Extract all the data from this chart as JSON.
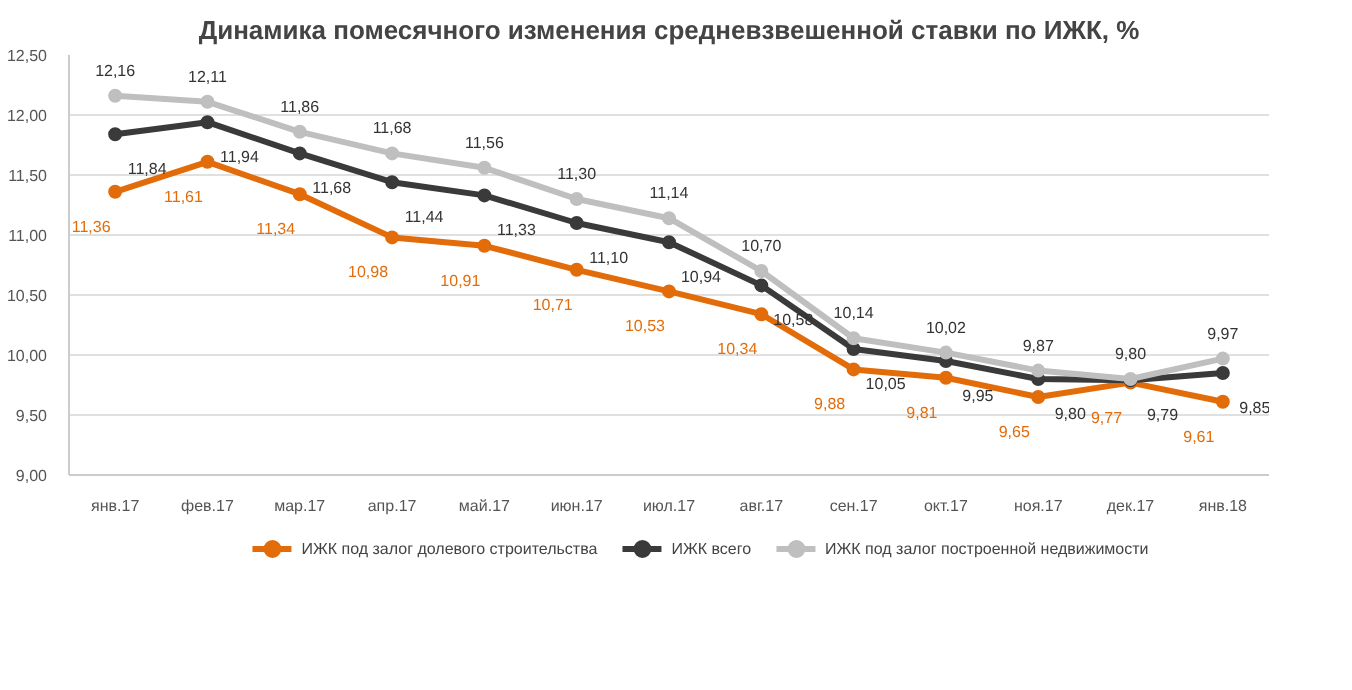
{
  "chart_data": {
    "type": "line",
    "title": "Динамика помесячного изменения средневзвешенной ставки по ИЖК, %",
    "categories": [
      "янв.17",
      "фев.17",
      "мар.17",
      "апр.17",
      "май.17",
      "июн.17",
      "июл.17",
      "авг.17",
      "сен.17",
      "окт.17",
      "ноя.17",
      "дек.17",
      "янв.18"
    ],
    "series": [
      {
        "name": "ИЖК под залог долевого строительства",
        "color": "#e36c0a",
        "values": [
          11.36,
          11.61,
          11.34,
          10.98,
          10.91,
          10.71,
          10.53,
          10.34,
          9.88,
          9.81,
          9.65,
          9.77,
          9.61
        ],
        "value_labels": [
          "11,36",
          "11,61",
          "11,34",
          "10,98",
          "10,91",
          "10,71",
          "10,53",
          "10,34",
          "9,88",
          "9,81",
          "9,65",
          "9,77",
          "9,61"
        ]
      },
      {
        "name": "ИЖК всего",
        "color": "#3a3a3a",
        "values": [
          11.84,
          11.94,
          11.68,
          11.44,
          11.33,
          11.1,
          10.94,
          10.58,
          10.05,
          9.95,
          9.8,
          9.79,
          9.85
        ],
        "value_labels": [
          "11,84",
          "11,94",
          "11,68",
          "11,44",
          "11,33",
          "11,10",
          "10,94",
          "10,58",
          "10,05",
          "9,95",
          "9,80",
          "9,79",
          "9,85"
        ]
      },
      {
        "name": "ИЖК под залог построенной недвижимости",
        "color": "#bfbfbf",
        "values": [
          12.16,
          12.11,
          11.86,
          11.68,
          11.56,
          11.3,
          11.14,
          10.7,
          10.14,
          10.02,
          9.87,
          9.8,
          9.97
        ],
        "value_labels": [
          "12,16",
          "12,11",
          "11,86",
          "11,68",
          "11,56",
          "11,30",
          "11,14",
          "10,70",
          "10,14",
          "10,02",
          "9,87",
          "9,80",
          "9,97"
        ]
      }
    ],
    "ylim": [
      9.0,
      12.5
    ],
    "yticks": [
      {
        "value": 9.0,
        "label": "9,00"
      },
      {
        "value": 9.5,
        "label": "9,50"
      },
      {
        "value": 10.0,
        "label": "10,00"
      },
      {
        "value": 10.5,
        "label": "10,50"
      },
      {
        "value": 11.0,
        "label": "11,00"
      },
      {
        "value": 11.5,
        "label": "11,50"
      },
      {
        "value": 12.0,
        "label": "12,00"
      },
      {
        "value": 12.5,
        "label": "12,50"
      }
    ],
    "grid": "y",
    "legend": "bottom",
    "marker": "circle",
    "line_style": "solid"
  }
}
